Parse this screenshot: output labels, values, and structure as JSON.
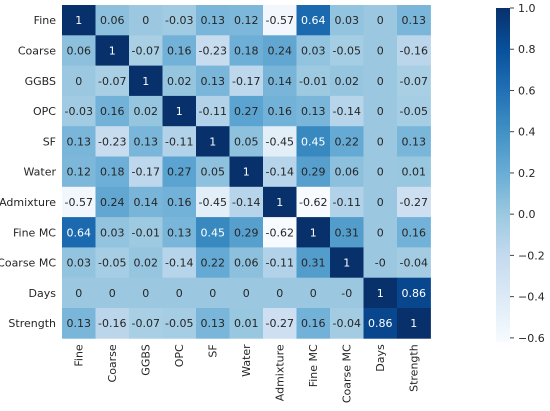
{
  "chart_data": {
    "type": "heatmap",
    "title": "",
    "xlabel": "",
    "ylabel": "",
    "row_labels": [
      "Fine",
      "Coarse",
      "GGBS",
      "OPC",
      "SF",
      "Water",
      "Admixture",
      "Fine MC",
      "Coarse MC",
      "Days",
      "Strength"
    ],
    "col_labels": [
      "Fine",
      "Coarse",
      "GGBS",
      "OPC",
      "SF",
      "Water",
      "Admixture",
      "Fine MC",
      "Coarse MC",
      "Days",
      "Strength"
    ],
    "cell_labels": [
      [
        "1",
        "0.06",
        "0",
        "-0.03",
        "0.13",
        "0.12",
        "-0.57",
        "0.64",
        "0.03",
        "0",
        "0.13"
      ],
      [
        "0.06",
        "1",
        "-0.07",
        "0.16",
        "-0.23",
        "0.18",
        "0.24",
        "0.03",
        "-0.05",
        "0",
        "-0.16"
      ],
      [
        "0",
        "-0.07",
        "1",
        "0.02",
        "0.13",
        "-0.17",
        "0.14",
        "-0.01",
        "0.02",
        "0",
        "-0.07"
      ],
      [
        "-0.03",
        "0.16",
        "0.02",
        "1",
        "-0.11",
        "0.27",
        "0.16",
        "0.13",
        "-0.14",
        "0",
        "-0.05"
      ],
      [
        "0.13",
        "-0.23",
        "0.13",
        "-0.11",
        "1",
        "0.05",
        "-0.45",
        "0.45",
        "0.22",
        "0",
        "0.13"
      ],
      [
        "0.12",
        "0.18",
        "-0.17",
        "0.27",
        "0.05",
        "1",
        "-0.14",
        "0.29",
        "0.06",
        "0",
        "0.01"
      ],
      [
        "-0.57",
        "0.24",
        "0.14",
        "0.16",
        "-0.45",
        "-0.14",
        "1",
        "-0.62",
        "-0.11",
        "0",
        "-0.27"
      ],
      [
        "0.64",
        "0.03",
        "-0.01",
        "0.13",
        "0.45",
        "0.29",
        "-0.62",
        "1",
        "0.31",
        "0",
        "0.16"
      ],
      [
        "0.03",
        "-0.05",
        "0.02",
        "-0.14",
        "0.22",
        "0.06",
        "-0.11",
        "0.31",
        "1",
        "-0",
        "-0.04"
      ],
      [
        "0",
        "0",
        "0",
        "0",
        "0",
        "0",
        "0",
        "0",
        "-0",
        "1",
        "0.86"
      ],
      [
        "0.13",
        "-0.16",
        "-0.07",
        "-0.05",
        "0.13",
        "0.01",
        "-0.27",
        "0.16",
        "-0.04",
        "0.86",
        "1"
      ]
    ],
    "colorbar": {
      "colormap": "Blues",
      "range": [
        -0.62,
        1.0
      ],
      "ticks": [
        1.0,
        0.8,
        0.6,
        0.4,
        0.2,
        0.0,
        -0.2,
        -0.4,
        -0.6
      ],
      "tick_labels": [
        "1.0",
        "0.8",
        "0.6",
        "0.4",
        "0.2",
        "0.0",
        "−0.2",
        "−0.4",
        "−0.6"
      ]
    },
    "grid": false,
    "legend": "colorbar-right"
  }
}
